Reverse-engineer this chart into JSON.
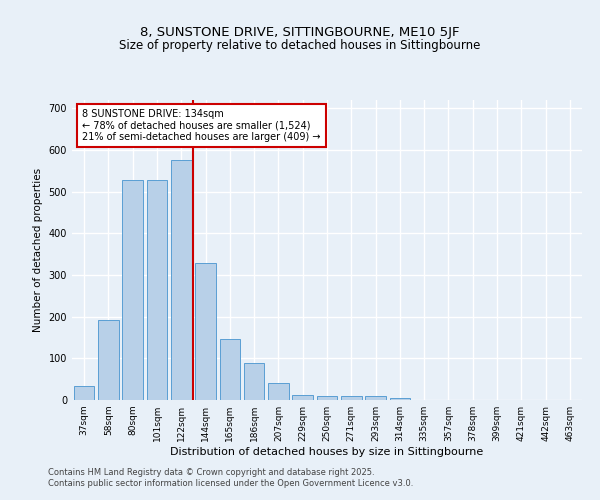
{
  "title1": "8, SUNSTONE DRIVE, SITTINGBOURNE, ME10 5JF",
  "title2": "Size of property relative to detached houses in Sittingbourne",
  "xlabel": "Distribution of detached houses by size in Sittingbourne",
  "ylabel": "Number of detached properties",
  "bar_labels": [
    "37sqm",
    "58sqm",
    "80sqm",
    "101sqm",
    "122sqm",
    "144sqm",
    "165sqm",
    "186sqm",
    "207sqm",
    "229sqm",
    "250sqm",
    "271sqm",
    "293sqm",
    "314sqm",
    "335sqm",
    "357sqm",
    "378sqm",
    "399sqm",
    "421sqm",
    "442sqm",
    "463sqm"
  ],
  "bar_values": [
    33,
    193,
    528,
    528,
    575,
    330,
    147,
    88,
    42,
    13,
    9,
    9,
    9,
    5,
    0,
    0,
    0,
    0,
    0,
    0,
    0
  ],
  "bar_color": "#b8d0e8",
  "bar_edge_color": "#5a9fd4",
  "vline_x": 4.5,
  "vline_color": "#cc0000",
  "annotation_text": "8 SUNSTONE DRIVE: 134sqm\n← 78% of detached houses are smaller (1,524)\n21% of semi-detached houses are larger (409) →",
  "annotation_box_color": "#ffffff",
  "annotation_box_edge_color": "#cc0000",
  "ylim": [
    0,
    720
  ],
  "yticks": [
    0,
    100,
    200,
    300,
    400,
    500,
    600,
    700
  ],
  "bg_color": "#e8f0f8",
  "grid_color": "#ffffff",
  "footnote": "Contains HM Land Registry data © Crown copyright and database right 2025.\nContains public sector information licensed under the Open Government Licence v3.0."
}
